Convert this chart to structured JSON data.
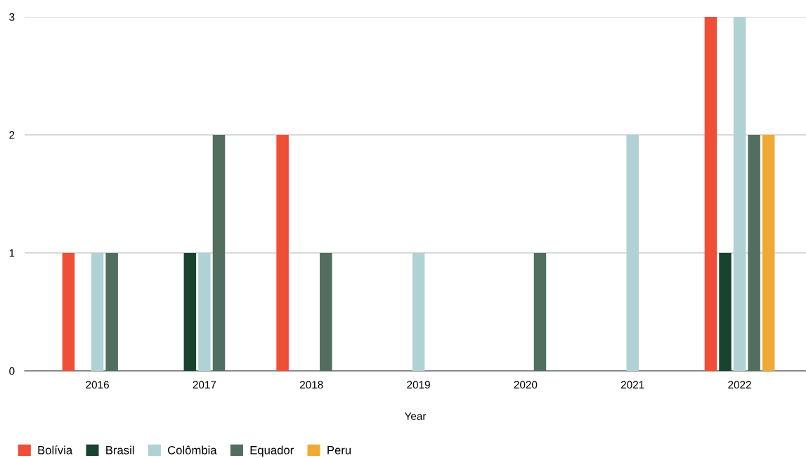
{
  "chart_data": {
    "type": "bar",
    "xlabel": "Year",
    "categories": [
      "2016",
      "2017",
      "2018",
      "2019",
      "2020",
      "2021",
      "2022"
    ],
    "series": [
      {
        "name": "Bolívia",
        "color": "#f04e37",
        "values": [
          1,
          0,
          2,
          0,
          0,
          0,
          3
        ]
      },
      {
        "name": "Brasil",
        "color": "#17432f",
        "values": [
          0,
          1,
          0,
          0,
          0,
          0,
          1
        ]
      },
      {
        "name": "Colômbia",
        "color": "#b0d2d4",
        "values": [
          1,
          1,
          0,
          1,
          0,
          2,
          3
        ]
      },
      {
        "name": "Equador",
        "color": "#526e5e",
        "values": [
          1,
          2,
          1,
          0,
          1,
          0,
          2
        ]
      },
      {
        "name": "Peru",
        "color": "#f0a935",
        "values": [
          0,
          0,
          0,
          0,
          0,
          0,
          2
        ]
      }
    ],
    "ylim": [
      0,
      3
    ],
    "yticks": [
      0,
      1,
      2,
      3
    ],
    "grid": "y",
    "legend": "bottom left"
  }
}
